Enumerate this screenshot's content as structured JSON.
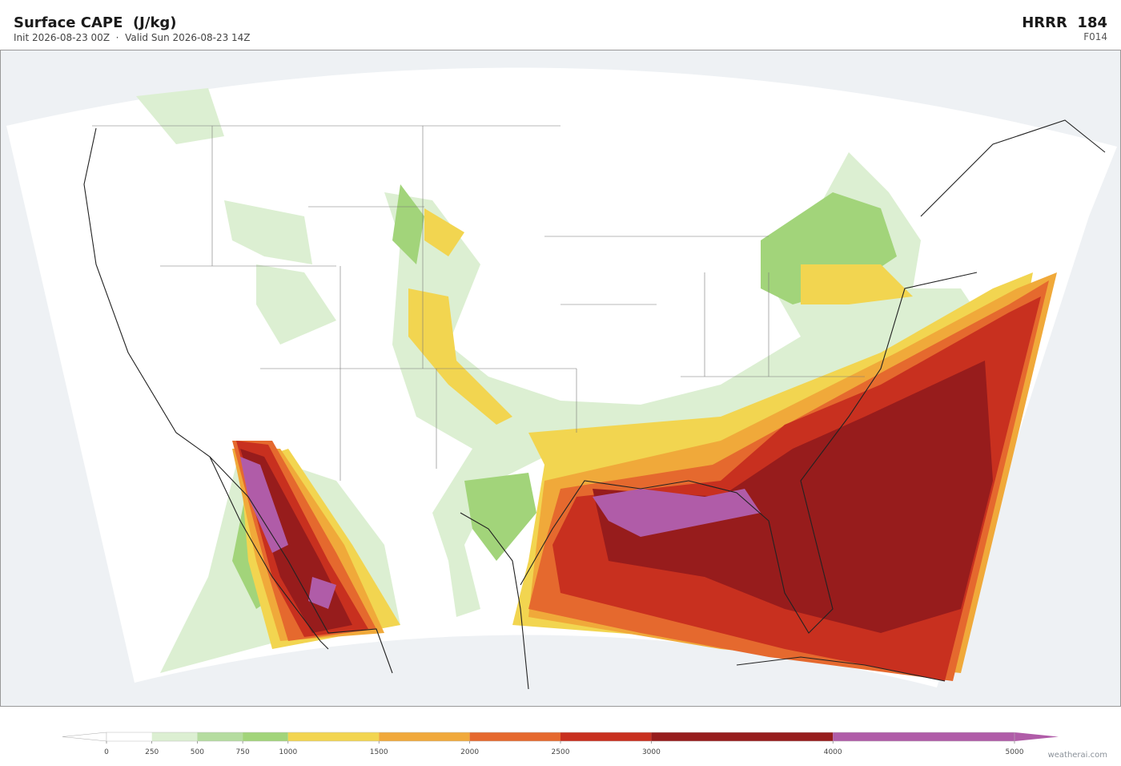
{
  "header": {
    "title": "Surface CAPE  (J/kg)",
    "subtitle": "Init 2026-08-23 00Z  ·  Valid Sun 2026-08-23 14Z",
    "model": "HRRR  184",
    "forecast_hour": "F014"
  },
  "colorbar": {
    "ticks": [
      0,
      250,
      500,
      750,
      1000,
      1500,
      2000,
      2500,
      3000,
      4000,
      5000
    ],
    "colors": [
      "#ffffff",
      "#dcefd2",
      "#b5dca0",
      "#a2d47a",
      "#f2d550",
      "#f0a93a",
      "#e5692e",
      "#c8301f",
      "#971c1c",
      "#b05ca8"
    ],
    "under_color": "#ffffff",
    "over_color": "#b05ca8"
  },
  "watermark": "weatherai.com"
}
